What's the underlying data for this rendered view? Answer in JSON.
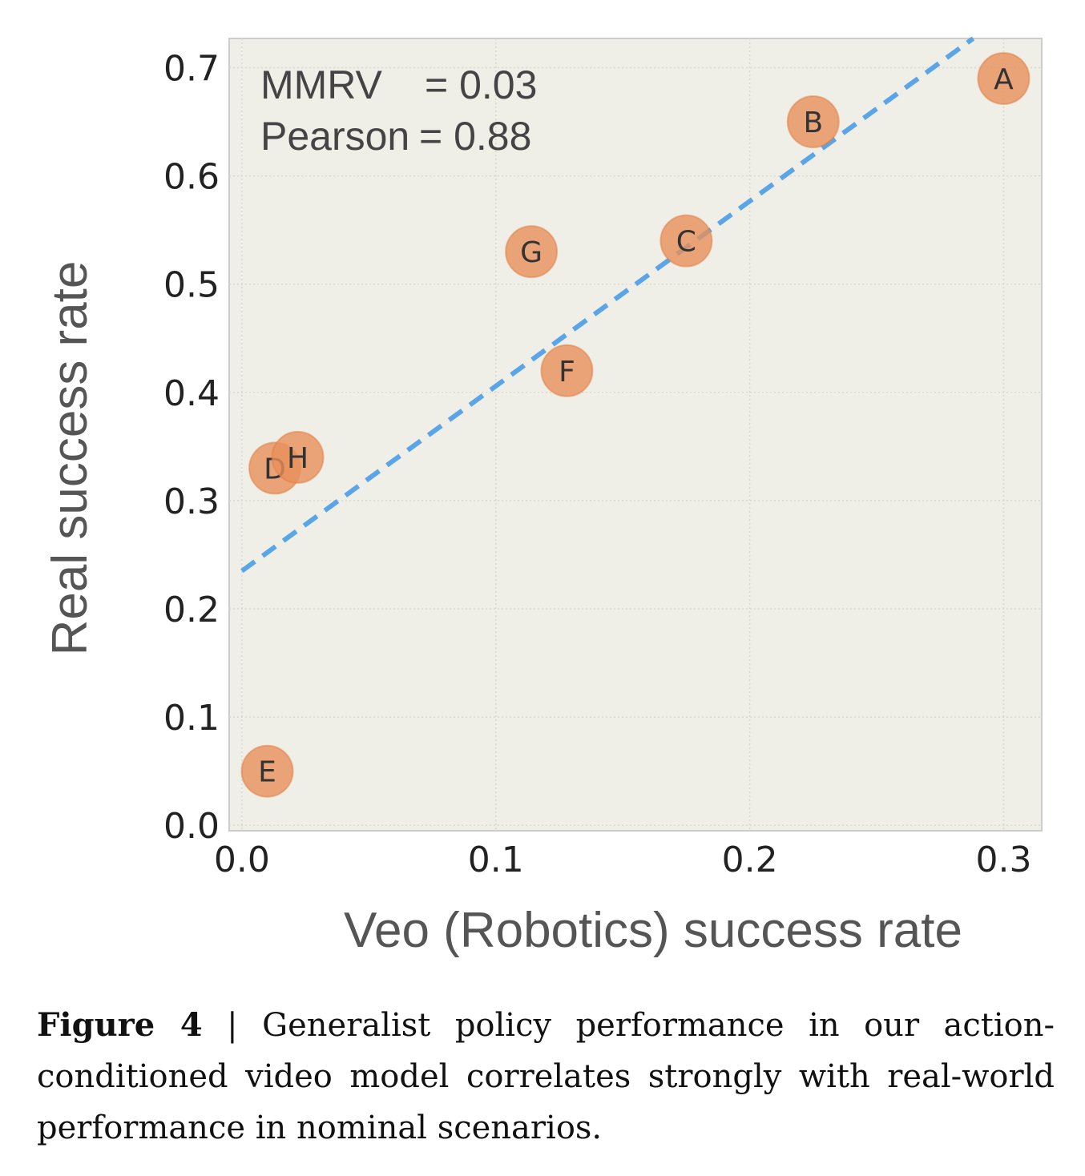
{
  "chart_data": {
    "type": "scatter",
    "xlabel": "Veo (Robotics) success rate",
    "ylabel": "Real success rate",
    "xlim": [
      -0.005,
      0.315
    ],
    "ylim": [
      -0.005,
      0.727
    ],
    "xticks": [
      "0.0",
      "0.1",
      "0.2",
      "0.3"
    ],
    "yticks": [
      "0.0",
      "0.1",
      "0.2",
      "0.3",
      "0.4",
      "0.5",
      "0.6",
      "0.7"
    ],
    "grid": true,
    "points": [
      {
        "label": "A",
        "x": 0.3,
        "y": 0.69
      },
      {
        "label": "B",
        "x": 0.225,
        "y": 0.65
      },
      {
        "label": "C",
        "x": 0.175,
        "y": 0.54
      },
      {
        "label": "G",
        "x": 0.114,
        "y": 0.53
      },
      {
        "label": "F",
        "x": 0.128,
        "y": 0.42
      },
      {
        "label": "D",
        "x": 0.013,
        "y": 0.33
      },
      {
        "label": "H",
        "x": 0.022,
        "y": 0.34
      },
      {
        "label": "E",
        "x": 0.01,
        "y": 0.05
      }
    ],
    "fit_line": {
      "x": [
        0.0,
        0.288
      ],
      "y": [
        0.235,
        0.727
      ],
      "style": "dashed"
    },
    "annotations": [
      {
        "name": "MMRV",
        "value": "= 0.03"
      },
      {
        "name": "Pearson",
        "value": "= 0.88"
      }
    ],
    "colors": {
      "background": "#efefe8",
      "point": "#e8905a",
      "line": "#5aa5e8",
      "grid": "#d8d8d2"
    }
  },
  "caption": {
    "label": "Figure 4",
    "separator": "|",
    "text": "Generalist policy performance in our action-conditioned video model correlates strongly with real-world performance in nominal scenarios."
  }
}
